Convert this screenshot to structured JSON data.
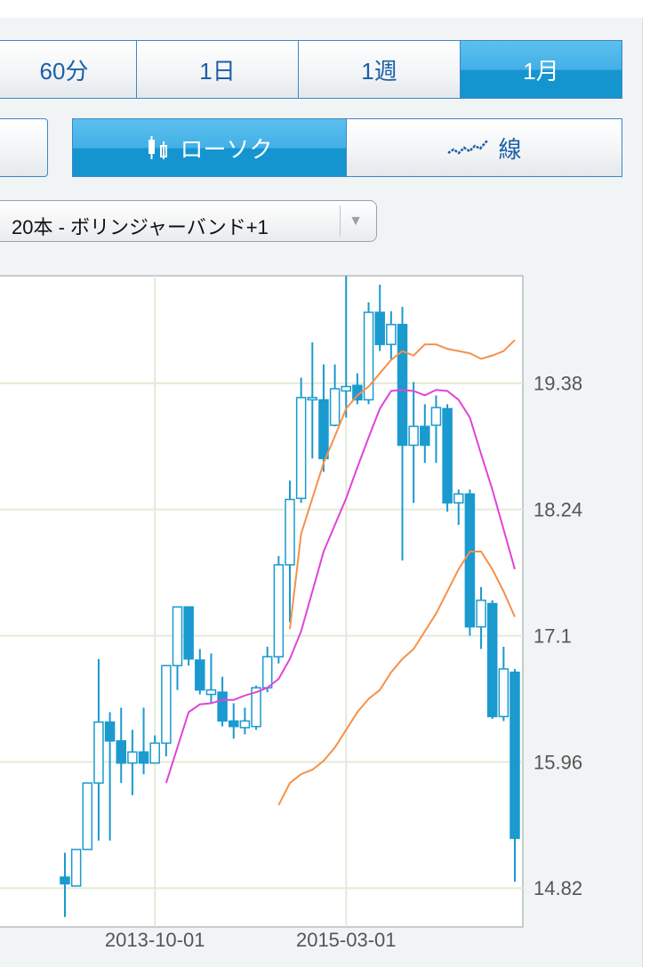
{
  "period_tabs": [
    "60分",
    "1日",
    "1週",
    "1月"
  ],
  "selected_period": 3,
  "view_tabs": [
    "ローソク",
    "線"
  ],
  "selected_view": 0,
  "indicator": "20本 - ボリンジャーバンド+1",
  "chart_data": {
    "type": "candlestick",
    "categories": [
      null,
      null,
      null,
      null,
      null,
      null,
      null,
      null,
      "2013-10-01",
      null,
      null,
      null,
      null,
      null,
      null,
      null,
      null,
      null,
      null,
      null,
      null,
      null,
      null,
      null,
      null,
      "2015-03-01",
      null,
      null,
      null,
      null,
      null,
      null,
      null,
      null,
      null,
      null,
      null,
      null,
      null,
      null,
      null
    ],
    "open": [
      14.92,
      14.84,
      15.17,
      15.77,
      16.32,
      16.15,
      15.95,
      16.05,
      15.95,
      16.13,
      16.83,
      17.36,
      16.88,
      16.57,
      16.59,
      16.33,
      16.27,
      16.28,
      16.63,
      16.91,
      17.74,
      18.34,
      19.23,
      19.23,
      19.0,
      19.31,
      19.36,
      19.23,
      20.02,
      19.73,
      19.91,
      18.82,
      18.99,
      19.0,
      19.15,
      18.3,
      18.38,
      17.18,
      17.39,
      16.37,
      16.77
    ],
    "high": [
      15.14,
      15.17,
      15.77,
      16.89,
      16.41,
      16.45,
      16.25,
      16.45,
      16.2,
      16.83,
      17.36,
      17.36,
      16.98,
      16.94,
      16.73,
      16.49,
      16.45,
      16.65,
      17.0,
      17.82,
      18.5,
      19.43,
      19.75,
      19.55,
      19.55,
      20.35,
      19.47,
      20.11,
      20.27,
      20.03,
      20.07,
      19.39,
      19.19,
      19.27,
      19.19,
      18.42,
      18.42,
      17.54,
      17.42,
      17.0,
      16.8
    ],
    "low": [
      14.56,
      14.84,
      15.17,
      15.25,
      15.25,
      15.77,
      15.66,
      15.85,
      15.95,
      16.01,
      16.61,
      16.83,
      16.57,
      16.49,
      16.28,
      16.17,
      16.21,
      16.25,
      16.59,
      16.85,
      17.22,
      18.3,
      18.7,
      18.58,
      18.99,
      19.07,
      19.19,
      19.19,
      19.67,
      19.59,
      17.78,
      18.3,
      18.66,
      18.66,
      18.22,
      18.1,
      17.1,
      16.98,
      16.35,
      16.33,
      14.88
    ],
    "close": [
      14.86,
      15.17,
      15.77,
      16.32,
      16.15,
      15.95,
      16.05,
      15.95,
      16.13,
      16.83,
      17.36,
      16.89,
      16.61,
      16.61,
      16.33,
      16.28,
      16.33,
      16.63,
      16.91,
      17.74,
      18.33,
      19.25,
      19.25,
      18.7,
      19.33,
      19.35,
      19.23,
      20.02,
      19.73,
      19.91,
      18.82,
      18.99,
      18.82,
      19.16,
      18.3,
      18.38,
      17.18,
      17.42,
      16.37,
      16.8,
      15.27
    ],
    "up_color": "#ffffff",
    "down_color": "#1a9acf",
    "edge_color": "#1a9acf",
    "lines": [
      {
        "color": "#e044d8",
        "values": [
          null,
          null,
          null,
          null,
          null,
          null,
          null,
          null,
          null,
          15.77,
          16.09,
          16.41,
          16.48,
          16.49,
          16.52,
          16.52,
          16.56,
          16.59,
          16.63,
          16.71,
          16.89,
          17.14,
          17.5,
          17.86,
          18.1,
          18.34,
          18.62,
          18.89,
          19.15,
          19.31,
          19.32,
          19.31,
          19.27,
          19.32,
          19.31,
          19.23,
          19.07,
          18.74,
          18.42,
          18.06,
          17.7
        ]
      },
      {
        "color": "#f5914a",
        "values": [
          null,
          null,
          null,
          null,
          null,
          null,
          null,
          null,
          null,
          null,
          null,
          null,
          null,
          null,
          null,
          null,
          null,
          null,
          null,
          null,
          17.16,
          18.02,
          18.34,
          18.66,
          18.9,
          19.15,
          19.27,
          19.35,
          19.47,
          19.59,
          19.67,
          19.63,
          19.73,
          19.73,
          19.69,
          19.67,
          19.65,
          19.6,
          19.63,
          19.67,
          19.77
        ]
      },
      {
        "color": "#f5914a",
        "values": [
          null,
          null,
          null,
          null,
          null,
          null,
          null,
          null,
          null,
          null,
          null,
          null,
          null,
          null,
          null,
          null,
          null,
          null,
          null,
          15.57,
          15.77,
          15.85,
          15.89,
          15.97,
          16.09,
          16.25,
          16.41,
          16.53,
          16.61,
          16.77,
          16.89,
          16.98,
          17.14,
          17.3,
          17.5,
          17.7,
          17.86,
          17.86,
          17.7,
          17.5,
          17.27
        ]
      }
    ],
    "ylim": [
      14.47,
      20.35
    ],
    "yticks": [
      14.82,
      15.96,
      17.1,
      18.24,
      19.38
    ],
    "grid": true,
    "grid_color": "#e2ebd6"
  }
}
